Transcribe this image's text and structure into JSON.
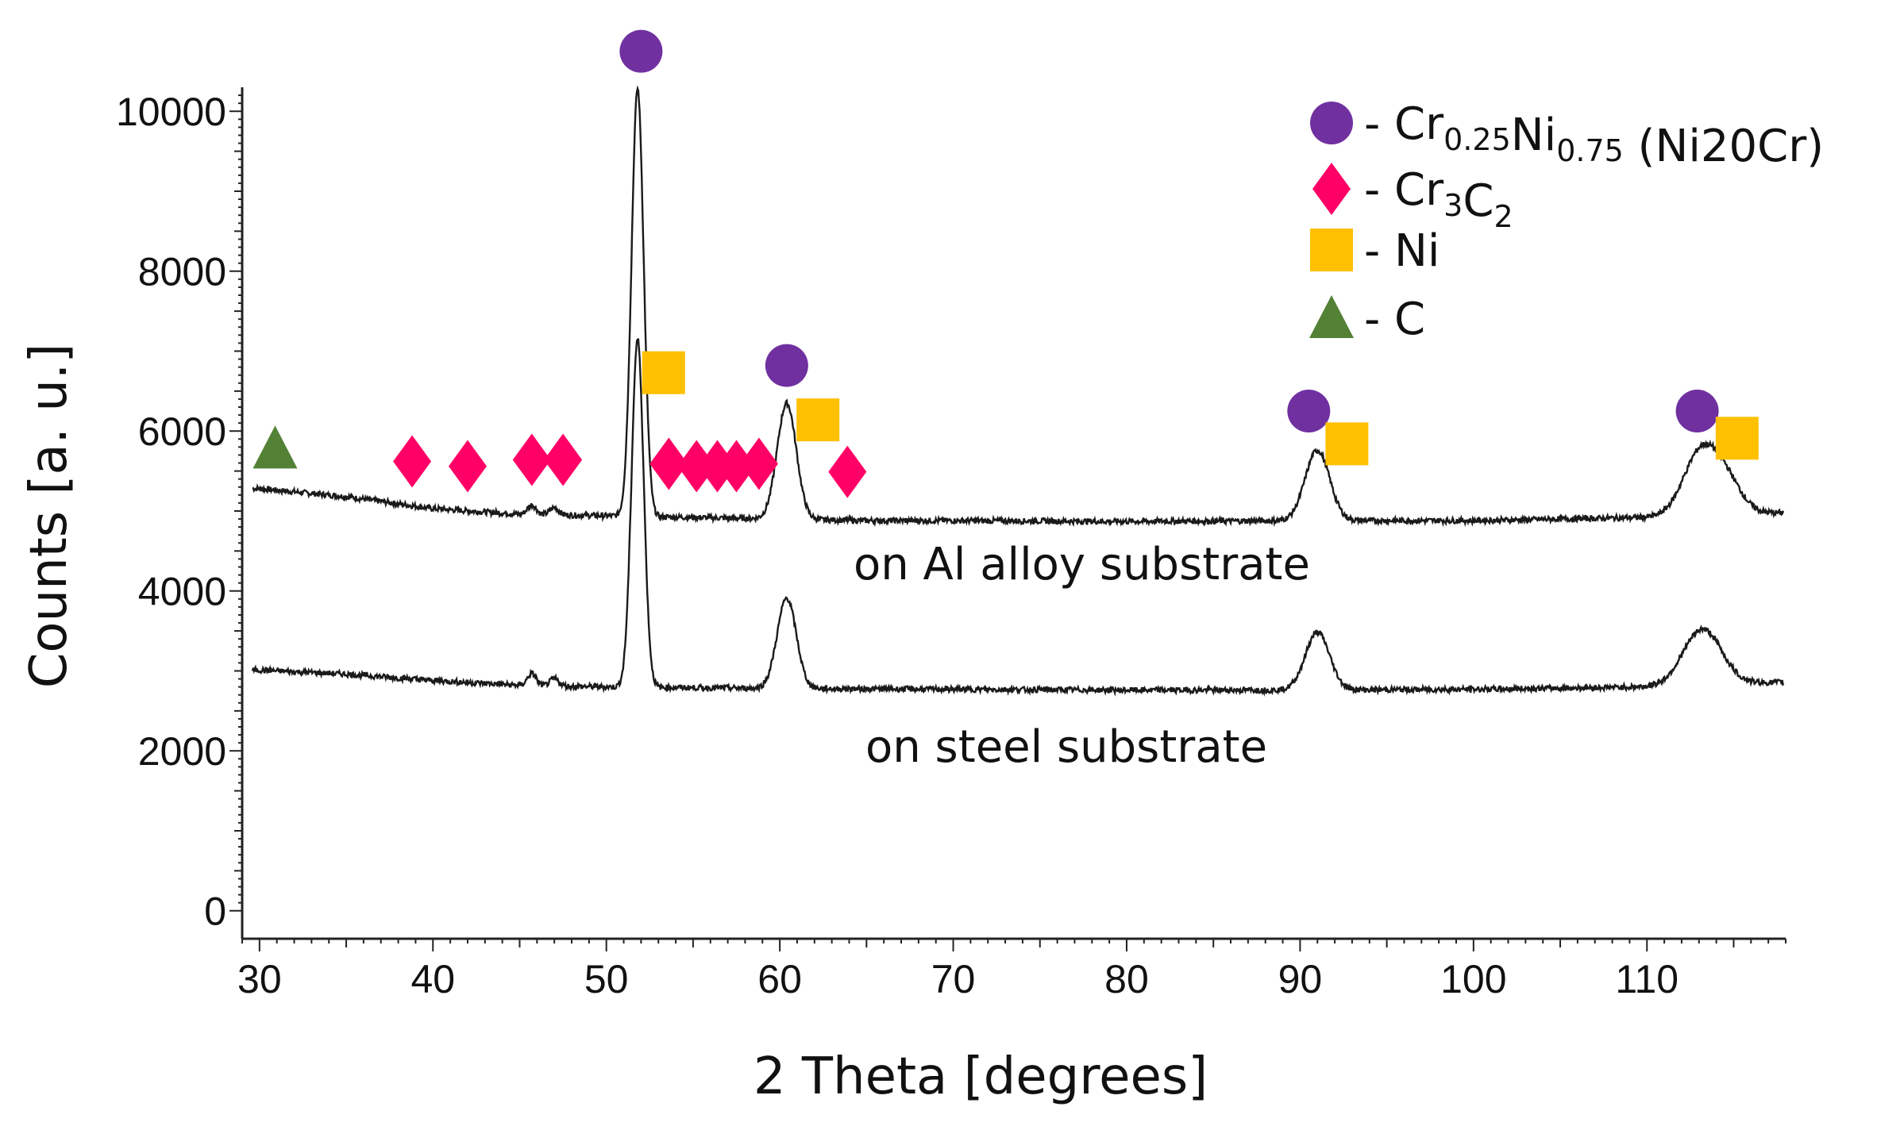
{
  "chart_data": {
    "type": "line",
    "xlabel": "2 Theta [degrees]",
    "ylabel": "Counts [a. u.]",
    "xlim": [
      29,
      118
    ],
    "ylim": [
      -350,
      10300
    ],
    "xticks": [
      30,
      40,
      50,
      60,
      70,
      80,
      90,
      100,
      110
    ],
    "yticks": [
      0,
      2000,
      4000,
      6000,
      8000,
      10000
    ],
    "grid": false,
    "legend_position": "top-right",
    "series": [
      {
        "name": "on Al alloy substrate",
        "baseline": [
          [
            30,
            5280
          ],
          [
            35,
            5180
          ],
          [
            40,
            5030
          ],
          [
            45,
            4960
          ],
          [
            50,
            4940
          ],
          [
            55,
            4920
          ],
          [
            60,
            4900
          ],
          [
            65,
            4880
          ],
          [
            70,
            4880
          ],
          [
            80,
            4870
          ],
          [
            90,
            4880
          ],
          [
            100,
            4880
          ],
          [
            110,
            4920
          ],
          [
            118,
            4980
          ]
        ],
        "peaks": [
          {
            "x": 45.7,
            "height": 120,
            "width": 0.25
          },
          {
            "x": 47.0,
            "height": 90,
            "width": 0.25
          },
          {
            "x": 51.8,
            "height": 5350,
            "width": 0.35
          },
          {
            "x": 60.4,
            "height": 1450,
            "width": 0.55
          },
          {
            "x": 91.0,
            "height": 880,
            "width": 0.7
          },
          {
            "x": 113.1,
            "height": 780,
            "width": 1.0
          },
          {
            "x": 114.6,
            "height": 360,
            "width": 0.9
          }
        ]
      },
      {
        "name": "on steel substrate",
        "baseline": [
          [
            30,
            3010
          ],
          [
            35,
            2960
          ],
          [
            40,
            2880
          ],
          [
            45,
            2820
          ],
          [
            50,
            2800
          ],
          [
            55,
            2790
          ],
          [
            60,
            2780
          ],
          [
            70,
            2770
          ],
          [
            80,
            2760
          ],
          [
            90,
            2760
          ],
          [
            100,
            2770
          ],
          [
            110,
            2800
          ],
          [
            118,
            2860
          ]
        ],
        "peaks": [
          {
            "x": 45.7,
            "height": 150,
            "width": 0.25
          },
          {
            "x": 47.0,
            "height": 90,
            "width": 0.25
          },
          {
            "x": 51.8,
            "height": 4350,
            "width": 0.35
          },
          {
            "x": 60.4,
            "height": 1130,
            "width": 0.55
          },
          {
            "x": 91.0,
            "height": 720,
            "width": 0.7
          },
          {
            "x": 113.2,
            "height": 700,
            "width": 1.1
          }
        ]
      }
    ],
    "annotations": [
      {
        "text": "on Al alloy substrate",
        "x": 70,
        "y": 4250
      },
      {
        "text": "on steel substrate",
        "x": 70,
        "y": 2030
      }
    ],
    "markers": [
      {
        "phase": "C",
        "shape": "triangle",
        "x": 30.9,
        "y": 5780
      },
      {
        "phase": "Cr3C2",
        "shape": "diamond",
        "x": 38.8,
        "y": 5620
      },
      {
        "phase": "Cr3C2",
        "shape": "diamond",
        "x": 42.0,
        "y": 5560
      },
      {
        "phase": "Cr3C2",
        "shape": "diamond",
        "x": 45.7,
        "y": 5640
      },
      {
        "phase": "Cr3C2",
        "shape": "diamond",
        "x": 47.5,
        "y": 5640
      },
      {
        "phase": "Cr3C2",
        "shape": "diamond",
        "x": 53.6,
        "y": 5590
      },
      {
        "phase": "Cr3C2",
        "shape": "diamond",
        "x": 55.2,
        "y": 5560
      },
      {
        "phase": "Cr3C2",
        "shape": "diamond",
        "x": 56.4,
        "y": 5560
      },
      {
        "phase": "Cr3C2",
        "shape": "diamond",
        "x": 57.5,
        "y": 5560
      },
      {
        "phase": "Cr3C2",
        "shape": "diamond",
        "x": 58.8,
        "y": 5590
      },
      {
        "phase": "Cr3C2",
        "shape": "diamond",
        "x": 63.9,
        "y": 5490
      },
      {
        "phase": "Cr0.25Ni0.75",
        "shape": "circle",
        "x": 52.0,
        "y": 10750
      },
      {
        "phase": "Cr0.25Ni0.75",
        "shape": "circle",
        "x": 60.4,
        "y": 6820
      },
      {
        "phase": "Cr0.25Ni0.75",
        "shape": "circle",
        "x": 90.5,
        "y": 6250
      },
      {
        "phase": "Cr0.25Ni0.75",
        "shape": "circle",
        "x": 112.9,
        "y": 6250
      },
      {
        "phase": "Ni",
        "shape": "square",
        "x": 53.3,
        "y": 6730
      },
      {
        "phase": "Ni",
        "shape": "square",
        "x": 62.2,
        "y": 6140
      },
      {
        "phase": "Ni",
        "shape": "square",
        "x": 92.7,
        "y": 5840
      },
      {
        "phase": "Ni",
        "shape": "square",
        "x": 115.2,
        "y": 5910
      }
    ],
    "legend": [
      {
        "shape": "circle",
        "prefix": "- Cr",
        "sub1": "0.25",
        "mid": "Ni",
        "sub2": "0.75",
        "suffix": " (Ni20Cr)"
      },
      {
        "shape": "diamond",
        "prefix": "- Cr",
        "sub1": "3",
        "mid": "C",
        "sub2": "2",
        "suffix": ""
      },
      {
        "shape": "square",
        "prefix": "- Ni",
        "sub1": "",
        "mid": "",
        "sub2": "",
        "suffix": ""
      },
      {
        "shape": "triangle",
        "prefix": "- C",
        "sub1": "",
        "mid": "",
        "sub2": "",
        "suffix": ""
      }
    ],
    "colors": {
      "circle": "#7030A0",
      "diamond": "#FF0066",
      "square": "#FFC000",
      "triangle": "#538135",
      "line": "#1a1a1a"
    }
  }
}
